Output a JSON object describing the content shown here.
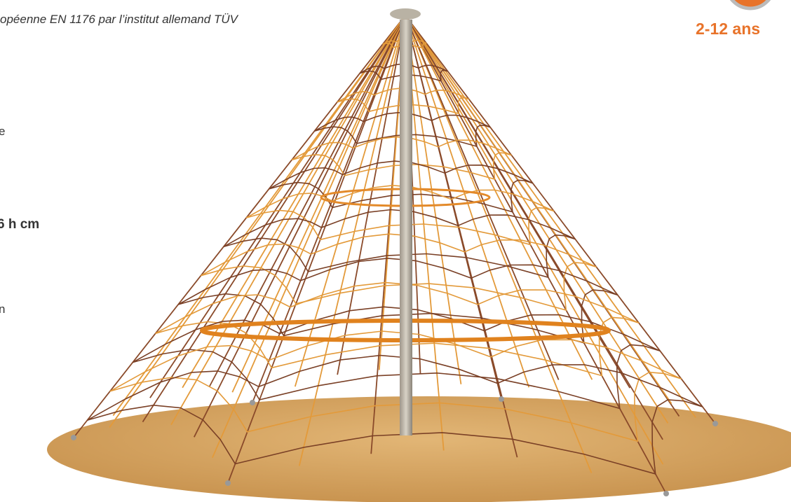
{
  "texts": {
    "norm": "opéenne EN 1176 par l’institut allemand TÜV",
    "line1": "e",
    "dimensions": "6 h cm",
    "line2": "n",
    "age": "2-12 ans"
  }
}
